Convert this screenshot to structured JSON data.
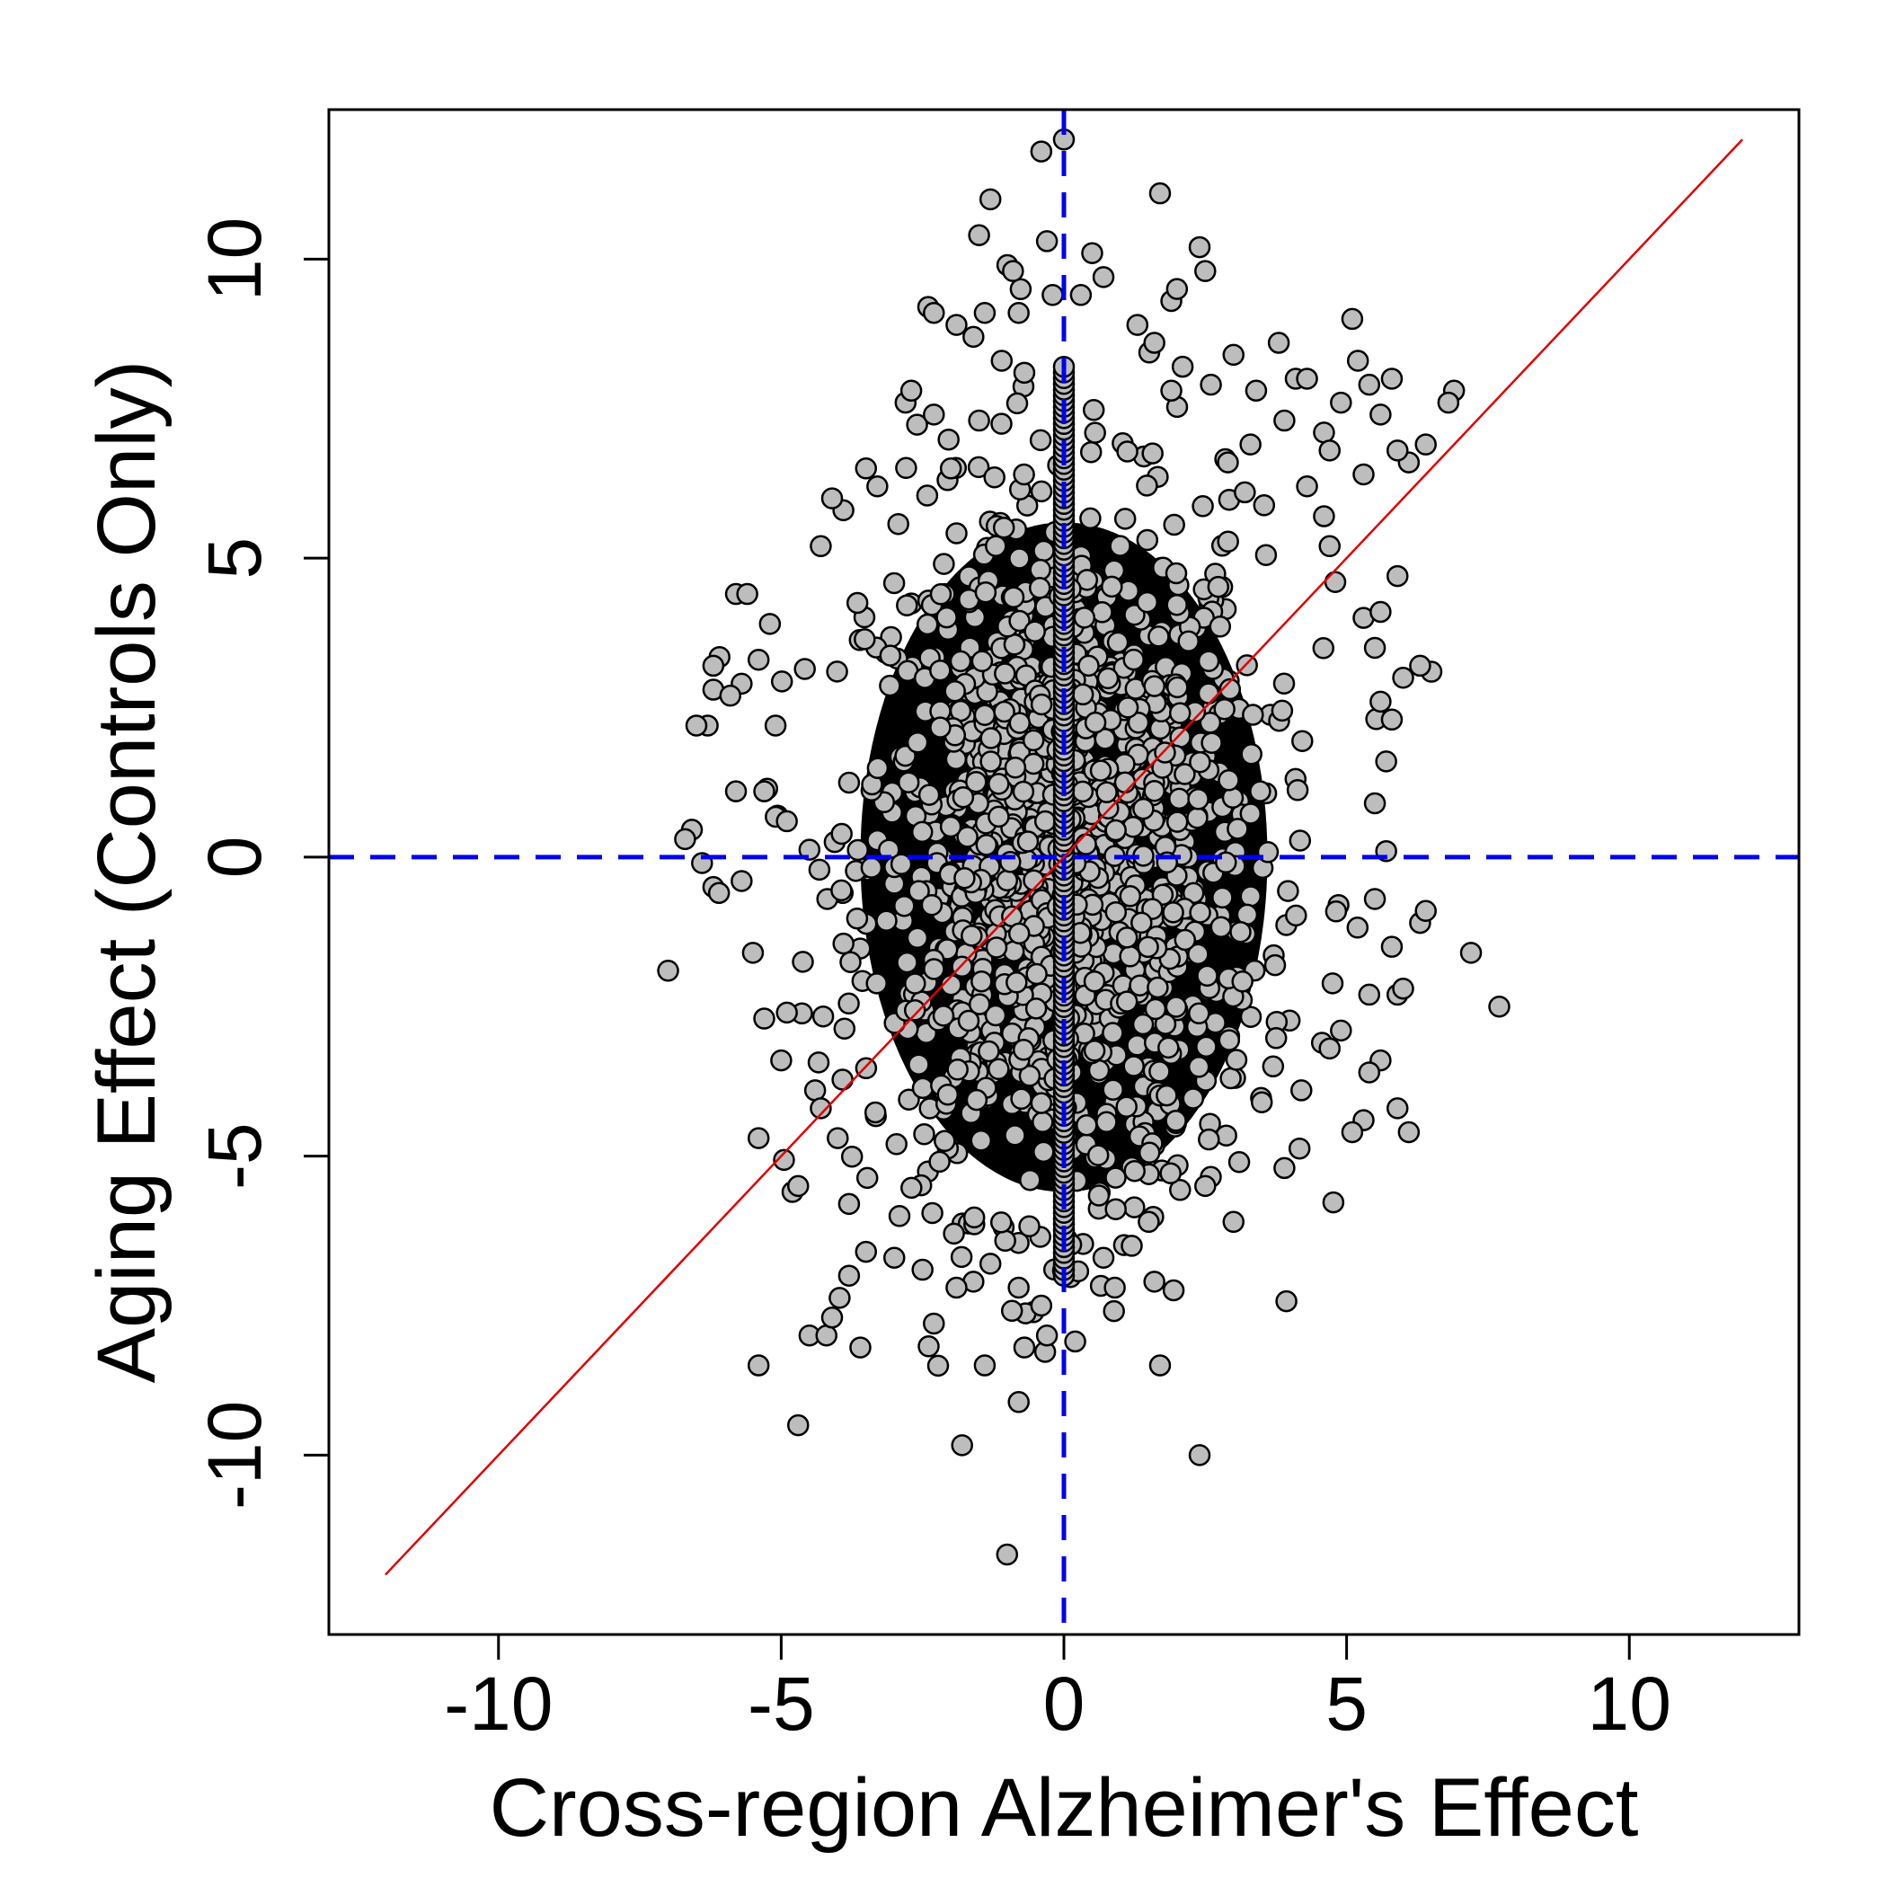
{
  "chart_data": {
    "type": "scatter",
    "title": "",
    "xlabel": "Cross-region Alzheimer's Effect",
    "ylabel": "Aging Effect (Controls Only)",
    "xlim": [
      -13,
      13
    ],
    "ylim": [
      -13,
      12.5
    ],
    "x_ticks": [
      -10,
      -5,
      0,
      5,
      10
    ],
    "y_ticks": [
      -10,
      -5,
      0,
      5,
      10
    ],
    "x_tick_labels": [
      "-10",
      "-5",
      "0",
      "5",
      "10"
    ],
    "y_tick_labels": [
      "-10",
      "-5",
      "0",
      "5",
      "10"
    ],
    "grid": false,
    "legend": "none",
    "colors": {
      "point_fill": "#bdbdbd",
      "point_stroke": "#000000",
      "reference_lines": "#0000ee",
      "diagonal": "#e00000"
    },
    "reference_lines": [
      {
        "orientation": "vertical",
        "value": 0,
        "style": "dashed"
      },
      {
        "orientation": "horizontal",
        "value": 0,
        "style": "dashed"
      }
    ],
    "diagonal_line": {
      "x": [
        -12,
        12
      ],
      "y": [
        -12,
        12
      ]
    },
    "series": [
      {
        "points": [
          [
            -0.4,
            11.8
          ],
          [
            0,
            12
          ],
          [
            1.7,
            11.1
          ],
          [
            -1.3,
            11
          ],
          [
            -1.5,
            10.4
          ],
          [
            -0.3,
            10.3
          ],
          [
            2.4,
            10.2
          ],
          [
            2.5,
            9.8
          ],
          [
            0.5,
            10.1
          ],
          [
            0.7,
            9.7
          ],
          [
            -1,
            9.9
          ],
          [
            -0.9,
            9.8
          ],
          [
            -2.4,
            9.2
          ],
          [
            -2.3,
            9.1
          ],
          [
            -1.4,
            9.1
          ],
          [
            -0.8,
            9.1
          ],
          [
            -0.2,
            9.4
          ],
          [
            0.3,
            9.4
          ],
          [
            1.9,
            9.3
          ],
          [
            2,
            9.5
          ],
          [
            5.1,
            9
          ],
          [
            -1.6,
            8.7
          ],
          [
            -1.9,
            8.9
          ],
          [
            3,
            8.4
          ],
          [
            3.8,
            8.6
          ],
          [
            5.2,
            8.3
          ],
          [
            4.1,
            8
          ],
          [
            4.3,
            8
          ],
          [
            4.9,
            7.6
          ],
          [
            5.4,
            7.9
          ],
          [
            5.8,
            8
          ],
          [
            6.9,
            7.8
          ],
          [
            6.8,
            7.6
          ],
          [
            -2.8,
            7.6
          ],
          [
            -2.7,
            7.8
          ],
          [
            -2.3,
            7.4
          ],
          [
            6.4,
            6.9
          ],
          [
            6.1,
            6.6
          ],
          [
            5.9,
            6.8
          ],
          [
            -3.5,
            6.5
          ],
          [
            -3.9,
            5.8
          ],
          [
            -4.1,
            6
          ],
          [
            -4.3,
            5.2
          ],
          [
            5.9,
            4.7
          ],
          [
            6.5,
            3.1
          ],
          [
            6.3,
            3.2
          ],
          [
            6,
            3
          ],
          [
            -5.8,
            4.4
          ],
          [
            -5.6,
            4.4
          ],
          [
            -6.2,
            3.2
          ],
          [
            -6.2,
            2.8
          ],
          [
            -6.3,
            2.2
          ],
          [
            -6.5,
            2.2
          ],
          [
            -6.7,
            0.3
          ],
          [
            -6.4,
            -0.1
          ],
          [
            -6.2,
            -0.5
          ],
          [
            -7,
            -1.9
          ],
          [
            7.2,
            -1.6
          ],
          [
            7.7,
            -2.5
          ],
          [
            6.3,
            -1.1
          ],
          [
            6.4,
            -0.9
          ],
          [
            5.9,
            -2.3
          ],
          [
            6,
            -2.2
          ],
          [
            5.6,
            -3.4
          ],
          [
            5.4,
            -3.6
          ],
          [
            5.9,
            -4.2
          ],
          [
            6.1,
            -4.6
          ],
          [
            5.3,
            -4.4
          ],
          [
            5.1,
            -4.6
          ],
          [
            -5.4,
            -4.7
          ],
          [
            -4.8,
            -5.6
          ],
          [
            -4.7,
            -5.5
          ],
          [
            -4.5,
            -8
          ],
          [
            -4.2,
            -8
          ],
          [
            -4.1,
            -7.7
          ],
          [
            -3.6,
            -8.2
          ],
          [
            -2.3,
            -7.8
          ],
          [
            -1.4,
            -8.5
          ],
          [
            -0.7,
            -8.2
          ],
          [
            -0.3,
            -8
          ],
          [
            0.2,
            -8.1
          ],
          [
            1.7,
            -8.5
          ],
          [
            2.4,
            -10
          ],
          [
            -4.7,
            -9.5
          ],
          [
            -5.4,
            -8.5
          ],
          [
            3.9,
            -5.2
          ],
          [
            3.1,
            -5.1
          ],
          [
            3,
            -6.1
          ],
          [
            1.6,
            -7.1
          ],
          [
            1.5,
            -6.1
          ],
          [
            0.9,
            -7.2
          ],
          [
            -0.8,
            -7.2
          ],
          [
            -0.4,
            -7.5
          ],
          [
            -1.6,
            -7.1
          ],
          [
            -3.8,
            -7
          ],
          [
            2.6,
            7.9
          ],
          [
            3.4,
            7.8
          ],
          [
            4.6,
            7.1
          ],
          [
            3.9,
            7.3
          ],
          [
            3.3,
            6.9
          ],
          [
            5.6,
            7.4
          ],
          [
            5.3,
            6.4
          ],
          [
            4.7,
            6.8
          ],
          [
            -3.3,
            6.2
          ],
          [
            -2,
            6.5
          ],
          [
            -1.5,
            7.3
          ],
          [
            -1.1,
            8.3
          ],
          [
            -0.7,
            8.1
          ],
          [
            1.3,
            8.9
          ],
          [
            1.6,
            8.6
          ],
          [
            2.1,
            8.2
          ],
          [
            1.9,
            7.8
          ],
          [
            -5.2,
            3.9
          ],
          [
            -5.4,
            3.3
          ],
          [
            -5.7,
            2.9
          ],
          [
            -5.9,
            2.7
          ],
          [
            -5.3,
            1.1
          ],
          [
            -5.8,
            1.1
          ],
          [
            -5.1,
            2.2
          ],
          [
            -4.9,
            0.6
          ],
          [
            -6.1,
            -0.6
          ],
          [
            -5.7,
            -0.4
          ],
          [
            -5.5,
            -1.6
          ],
          [
            -5.3,
            -2.7
          ],
          [
            -5,
            -3.4
          ],
          [
            -4.9,
            -2.6
          ],
          [
            -4.4,
            -3.9
          ],
          [
            -4.3,
            -4.2
          ],
          [
            -4,
            -4.7
          ],
          [
            -3.8,
            -5.8
          ],
          [
            -3.5,
            -6.6
          ],
          [
            -3,
            -6.7
          ],
          [
            -2.5,
            -6.9
          ],
          [
            -1.9,
            -7.2
          ],
          [
            -1.3,
            -6.8
          ],
          [
            0.7,
            -6.7
          ],
          [
            1.2,
            -6.5
          ],
          [
            2.5,
            -5.5
          ],
          [
            3.5,
            -4.1
          ],
          [
            3.7,
            -3.5
          ],
          [
            4.2,
            -3.9
          ],
          [
            4.7,
            -3.2
          ],
          [
            4.9,
            -2.9
          ],
          [
            5.4,
            -2.3
          ],
          [
            5.8,
            -1.5
          ],
          [
            5.5,
            -0.7
          ],
          [
            5.7,
            0.1
          ],
          [
            5.5,
            0.9
          ],
          [
            5.7,
            1.6
          ],
          [
            5.6,
            2.6
          ],
          [
            5.8,
            2.3
          ],
          [
            5.5,
            3.5
          ],
          [
            5.3,
            4
          ],
          [
            5.6,
            4.1
          ],
          [
            4.8,
            4.6
          ],
          [
            4.7,
            5.2
          ],
          [
            4.6,
            5.7
          ],
          [
            4.3,
            6.2
          ],
          [
            2.9,
            6.6
          ],
          [
            3.2,
            6.1
          ]
        ]
      }
    ]
  }
}
